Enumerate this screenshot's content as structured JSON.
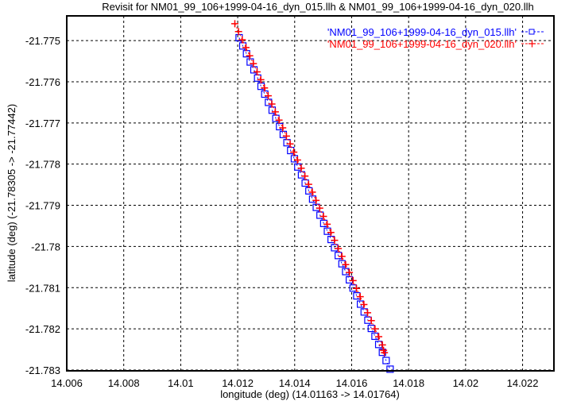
{
  "chart_data": {
    "type": "scatter",
    "title": "Revisit for NM01_99_106+1999-04-16_dyn_015.llh & NM01_99_106+1999-04-16_dyn_020.llh",
    "xlabel": "longitude (deg) (14.01163 -> 14.01764)",
    "ylabel": "latitude (deg) (-21.78305 -> -21.77442)",
    "xlim": [
      14.006,
      14.0231
    ],
    "ylim": [
      -21.78302,
      -21.7744
    ],
    "grid": true,
    "legend_position": "top-right",
    "x_ticks": [
      "14.006",
      "14.008",
      "14.01",
      "14.012",
      "14.014",
      "14.016",
      "14.018",
      "14.02",
      "14.022"
    ],
    "x_tick_values": [
      14.006,
      14.008,
      14.01,
      14.012,
      14.014,
      14.016,
      14.018,
      14.02,
      14.022
    ],
    "y_ticks": [
      "-21.775",
      "-21.776",
      "-21.777",
      "-21.778",
      "-21.779",
      "-21.78",
      "-21.781",
      "-21.782",
      "-21.783"
    ],
    "y_tick_values": [
      -21.775,
      -21.776,
      -21.777,
      -21.778,
      -21.779,
      -21.78,
      -21.781,
      -21.782,
      -21.783
    ],
    "series": [
      {
        "name": "'NM01_99_106+1999-04-16_dyn_015.llh'",
        "color": "#0000ff",
        "marker": "square",
        "points": [
          [
            14.01205,
            -21.77493
          ],
          [
            14.01218,
            -21.77513
          ],
          [
            14.01231,
            -21.77532
          ],
          [
            14.01244,
            -21.77552
          ],
          [
            14.01257,
            -21.77571
          ],
          [
            14.0127,
            -21.77591
          ],
          [
            14.01282,
            -21.77611
          ],
          [
            14.01295,
            -21.7763
          ],
          [
            14.01308,
            -21.7765
          ],
          [
            14.01321,
            -21.77669
          ],
          [
            14.01334,
            -21.77689
          ],
          [
            14.01347,
            -21.77709
          ],
          [
            14.0136,
            -21.77728
          ],
          [
            14.01373,
            -21.77748
          ],
          [
            14.01386,
            -21.77767
          ],
          [
            14.01399,
            -21.77787
          ],
          [
            14.01411,
            -21.77807
          ],
          [
            14.01424,
            -21.77826
          ],
          [
            14.01437,
            -21.77846
          ],
          [
            14.0145,
            -21.77865
          ],
          [
            14.01463,
            -21.77885
          ],
          [
            14.01476,
            -21.77905
          ],
          [
            14.01489,
            -21.77924
          ],
          [
            14.01502,
            -21.77944
          ],
          [
            14.01515,
            -21.77963
          ],
          [
            14.01528,
            -21.77983
          ],
          [
            14.0154,
            -21.78003
          ],
          [
            14.01553,
            -21.78022
          ],
          [
            14.01566,
            -21.78042
          ],
          [
            14.01579,
            -21.78061
          ],
          [
            14.01592,
            -21.78081
          ],
          [
            14.01605,
            -21.78101
          ],
          [
            14.01618,
            -21.7812
          ],
          [
            14.01631,
            -21.7814
          ],
          [
            14.01644,
            -21.78159
          ],
          [
            14.01657,
            -21.78179
          ],
          [
            14.01669,
            -21.78199
          ],
          [
            14.01682,
            -21.78218
          ],
          [
            14.01695,
            -21.78238
          ],
          [
            14.01708,
            -21.78257
          ],
          [
            14.01721,
            -21.78277
          ],
          [
            14.01735,
            -21.78298
          ]
        ]
      },
      {
        "name": "'NM01_99_106+1999-04-16_dyn_020.llh'",
        "color": "#ff0000",
        "marker": "plus",
        "points": [
          [
            14.0119,
            -21.77459
          ],
          [
            14.01203,
            -21.77478
          ],
          [
            14.01216,
            -21.77498
          ],
          [
            14.01229,
            -21.77517
          ],
          [
            14.01242,
            -21.77537
          ],
          [
            14.01255,
            -21.77556
          ],
          [
            14.01268,
            -21.77576
          ],
          [
            14.01281,
            -21.77595
          ],
          [
            14.01294,
            -21.77615
          ],
          [
            14.01307,
            -21.77634
          ],
          [
            14.0132,
            -21.77654
          ],
          [
            14.01332,
            -21.77673
          ],
          [
            14.01345,
            -21.77693
          ],
          [
            14.01358,
            -21.77712
          ],
          [
            14.01371,
            -21.77732
          ],
          [
            14.01384,
            -21.77751
          ],
          [
            14.01397,
            -21.77771
          ],
          [
            14.0141,
            -21.7779
          ],
          [
            14.01423,
            -21.7781
          ],
          [
            14.01436,
            -21.77829
          ],
          [
            14.01449,
            -21.77849
          ],
          [
            14.01462,
            -21.77868
          ],
          [
            14.01475,
            -21.77888
          ],
          [
            14.01488,
            -21.77907
          ],
          [
            14.01501,
            -21.77927
          ],
          [
            14.01514,
            -21.77946
          ],
          [
            14.01527,
            -21.77966
          ],
          [
            14.0154,
            -21.77985
          ],
          [
            14.01553,
            -21.78005
          ],
          [
            14.01566,
            -21.78024
          ],
          [
            14.01579,
            -21.78044
          ],
          [
            14.01592,
            -21.78063
          ],
          [
            14.01605,
            -21.78083
          ],
          [
            14.01617,
            -21.78102
          ],
          [
            14.0163,
            -21.78122
          ],
          [
            14.01643,
            -21.78141
          ],
          [
            14.01656,
            -21.78161
          ],
          [
            14.01669,
            -21.7818
          ],
          [
            14.01682,
            -21.782
          ],
          [
            14.01695,
            -21.78219
          ],
          [
            14.01708,
            -21.78239
          ],
          [
            14.01712,
            -21.78252
          ],
          [
            14.01715,
            -21.78258
          ]
        ]
      }
    ]
  }
}
